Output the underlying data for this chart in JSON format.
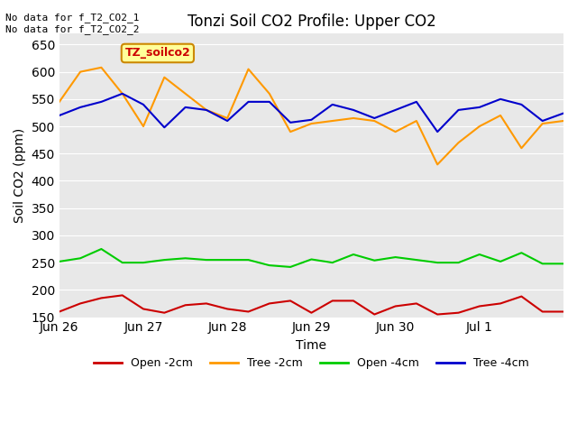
{
  "title": "Tonzi Soil CO2 Profile: Upper CO2",
  "xlabel": "Time",
  "ylabel": "Soil CO2 (ppm)",
  "top_left_text": "No data for f_T2_CO2_1\nNo data for f_T2_CO2_2",
  "legend_label_text": "TZ_soilco2",
  "ylim": [
    150,
    670
  ],
  "yticks": [
    150,
    200,
    250,
    300,
    350,
    400,
    450,
    500,
    550,
    600,
    650
  ],
  "bg_color": "#e8e8e8",
  "legend_box_color": "#ffff99",
  "legend_box_border": "#cc8800",
  "legend_text_color": "#cc0000",
  "series": {
    "open_2cm": {
      "color": "#cc0000",
      "label": "Open -2cm",
      "x": [
        0,
        0.5,
        1.0,
        1.5,
        2.0,
        2.5,
        3.0,
        3.5,
        4.0,
        4.5,
        5.0,
        5.5,
        6.0,
        6.5,
        7.0,
        7.5,
        8.0,
        8.5,
        9.0,
        9.5,
        10.0,
        10.5,
        11.0,
        11.5,
        12.0
      ],
      "y": [
        160,
        175,
        185,
        190,
        165,
        158,
        172,
        175,
        165,
        160,
        175,
        180,
        158,
        180,
        180,
        155,
        170,
        175,
        155,
        158,
        170,
        175,
        188,
        160,
        160
      ]
    },
    "tree_2cm": {
      "color": "#ff9900",
      "label": "Tree -2cm",
      "x": [
        0,
        0.5,
        1.0,
        1.5,
        2.0,
        2.5,
        3.0,
        3.5,
        4.0,
        4.5,
        5.0,
        5.5,
        6.0,
        6.5,
        7.0,
        7.5,
        8.0,
        8.5,
        9.0,
        9.5,
        10.0,
        10.5,
        11.0,
        11.5,
        12.0
      ],
      "y": [
        545,
        600,
        608,
        560,
        500,
        590,
        560,
        530,
        515,
        605,
        560,
        490,
        505,
        510,
        515,
        510,
        490,
        510,
        430,
        470,
        500,
        520,
        460,
        505,
        510
      ]
    },
    "open_4cm": {
      "color": "#00cc00",
      "label": "Open -4cm",
      "x": [
        0,
        0.5,
        1.0,
        1.5,
        2.0,
        2.5,
        3.0,
        3.5,
        4.0,
        4.5,
        5.0,
        5.5,
        6.0,
        6.5,
        7.0,
        7.5,
        8.0,
        8.5,
        9.0,
        9.5,
        10.0,
        10.5,
        11.0,
        11.5,
        12.0
      ],
      "y": [
        252,
        258,
        275,
        250,
        250,
        255,
        258,
        255,
        255,
        255,
        245,
        242,
        256,
        250,
        265,
        254,
        260,
        255,
        250,
        250,
        265,
        252,
        268,
        248,
        248
      ]
    },
    "tree_4cm": {
      "color": "#0000cc",
      "label": "Tree -4cm",
      "x": [
        0,
        0.5,
        1.0,
        1.5,
        2.0,
        2.5,
        3.0,
        3.5,
        4.0,
        4.5,
        5.0,
        5.5,
        6.0,
        6.5,
        7.0,
        7.5,
        8.0,
        8.5,
        9.0,
        9.5,
        10.0,
        10.5,
        11.0,
        11.5,
        12.0
      ],
      "y": [
        520,
        535,
        545,
        560,
        540,
        498,
        535,
        530,
        510,
        545,
        545,
        507,
        512,
        540,
        530,
        515,
        530,
        545,
        490,
        530,
        535,
        550,
        540,
        510,
        524
      ]
    }
  },
  "xtick_positions": [
    0,
    2,
    4,
    6,
    8,
    10,
    12
  ],
  "xtick_labels": [
    "Jun 26",
    "Jun 27",
    "Jun 28",
    "Jun 29",
    "Jun 30",
    "Jul 1",
    ""
  ]
}
